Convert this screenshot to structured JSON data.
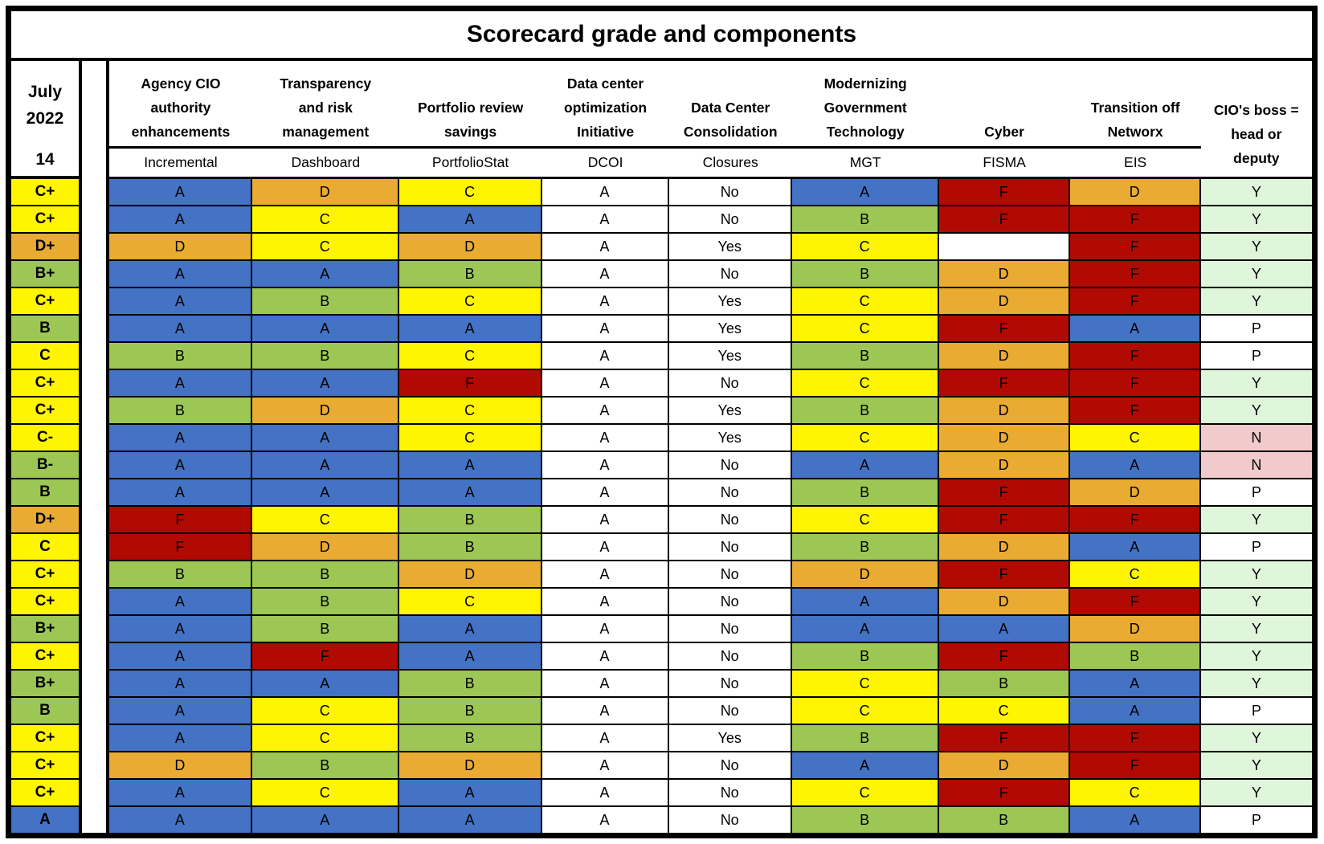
{
  "title": "Scorecard grade and components",
  "period": {
    "month": "July",
    "year": "2022",
    "edition": "14"
  },
  "colors": {
    "grade": {
      "A": "#4472C4",
      "B": "#9CC755",
      "C": "#FFF500",
      "D": "#EAAB32",
      "F": "#B00A02"
    },
    "boss": {
      "Y": "#DFF6DB",
      "N": "#F1CBCB",
      "P": "#FFFFFF"
    },
    "plain": "#FFFFFF",
    "border": "#000000"
  },
  "columns": [
    {
      "name_lines": [
        "Agency CIO",
        "authority",
        "enhancements"
      ],
      "sublabel": "Incremental",
      "type": "grade"
    },
    {
      "name_lines": [
        "Transparency",
        "and risk",
        "management"
      ],
      "sublabel": "Dashboard",
      "type": "grade"
    },
    {
      "name_lines": [
        "Portfolio review",
        "savings"
      ],
      "sublabel": "PortfolioStat",
      "type": "grade"
    },
    {
      "name_lines": [
        "Data center",
        "optimization",
        "Initiative"
      ],
      "sublabel": "DCOI",
      "type": "plain"
    },
    {
      "name_lines": [
        "Data Center",
        "Consolidation"
      ],
      "sublabel": "Closures",
      "type": "plain"
    },
    {
      "name_lines": [
        "Modernizing",
        "Government",
        "Technology"
      ],
      "sublabel": "MGT",
      "type": "grade"
    },
    {
      "name_lines": [
        "Cyber"
      ],
      "sublabel": "FISMA",
      "type": "grade"
    },
    {
      "name_lines": [
        "Transition off",
        "Networx"
      ],
      "sublabel": "EIS",
      "type": "grade"
    },
    {
      "name_lines": [
        "CIO's boss =",
        "head or",
        "deputy"
      ],
      "sublabel": null,
      "type": "boss"
    }
  ],
  "chart_data": {
    "type": "table",
    "title": "Scorecard grade and components",
    "scorecard_label": [
      "July",
      "2022",
      "14"
    ],
    "columns": [
      "Scorecard grade",
      "Agency CIO authority enhancements — Incremental",
      "Transparency and risk management — Dashboard",
      "Portfolio review savings — PortfolioStat",
      "Data center optimization Initiative — DCOI",
      "Data Center Consolidation — Closures",
      "Modernizing Government Technology — MGT",
      "Cyber — FISMA",
      "Transition off Networx — EIS",
      "CIO's boss = head or deputy"
    ],
    "rows": [
      [
        "C+",
        "A",
        "D",
        "C",
        "A",
        "No",
        "A",
        "F",
        "D",
        "Y"
      ],
      [
        "C+",
        "A",
        "C",
        "A",
        "A",
        "No",
        "B",
        "F",
        "F",
        "Y"
      ],
      [
        "D+",
        "D",
        "C",
        "D",
        "A",
        "Yes",
        "C",
        "",
        "F",
        "Y"
      ],
      [
        "B+",
        "A",
        "A",
        "B",
        "A",
        "No",
        "B",
        "D",
        "F",
        "Y"
      ],
      [
        "C+",
        "A",
        "B",
        "C",
        "A",
        "Yes",
        "C",
        "D",
        "F",
        "Y"
      ],
      [
        "B",
        "A",
        "A",
        "A",
        "A",
        "Yes",
        "C",
        "F",
        "A",
        "P"
      ],
      [
        "C",
        "B",
        "B",
        "C",
        "A",
        "Yes",
        "B",
        "D",
        "F",
        "P"
      ],
      [
        "C+",
        "A",
        "A",
        "F",
        "A",
        "No",
        "C",
        "F",
        "F",
        "Y"
      ],
      [
        "C+",
        "B",
        "D",
        "C",
        "A",
        "Yes",
        "B",
        "D",
        "F",
        "Y"
      ],
      [
        "C-",
        "A",
        "A",
        "C",
        "A",
        "Yes",
        "C",
        "D",
        "C",
        "N"
      ],
      [
        "B-",
        "A",
        "A",
        "A",
        "A",
        "No",
        "A",
        "D",
        "A",
        "N"
      ],
      [
        "B",
        "A",
        "A",
        "A",
        "A",
        "No",
        "B",
        "F",
        "D",
        "P"
      ],
      [
        "D+",
        "F",
        "C",
        "B",
        "A",
        "No",
        "C",
        "F",
        "F",
        "Y"
      ],
      [
        "C",
        "F",
        "D",
        "B",
        "A",
        "No",
        "B",
        "D",
        "A",
        "P"
      ],
      [
        "C+",
        "B",
        "B",
        "D",
        "A",
        "No",
        "D",
        "F",
        "C",
        "Y"
      ],
      [
        "C+",
        "A",
        "B",
        "C",
        "A",
        "No",
        "A",
        "D",
        "F",
        "Y"
      ],
      [
        "B+",
        "A",
        "B",
        "A",
        "A",
        "No",
        "A",
        "A",
        "D",
        "Y"
      ],
      [
        "C+",
        "A",
        "F",
        "A",
        "A",
        "No",
        "B",
        "F",
        "B",
        "Y"
      ],
      [
        "B+",
        "A",
        "A",
        "B",
        "A",
        "No",
        "C",
        "B",
        "A",
        "Y"
      ],
      [
        "B",
        "A",
        "C",
        "B",
        "A",
        "No",
        "C",
        "C",
        "A",
        "P"
      ],
      [
        "C+",
        "A",
        "C",
        "B",
        "A",
        "Yes",
        "B",
        "F",
        "F",
        "Y"
      ],
      [
        "C+",
        "D",
        "B",
        "D",
        "A",
        "No",
        "A",
        "D",
        "F",
        "Y"
      ],
      [
        "C+",
        "A",
        "C",
        "A",
        "A",
        "No",
        "C",
        "F",
        "C",
        "Y"
      ],
      [
        "A",
        "A",
        "A",
        "A",
        "A",
        "No",
        "B",
        "B",
        "A",
        "P"
      ]
    ]
  }
}
